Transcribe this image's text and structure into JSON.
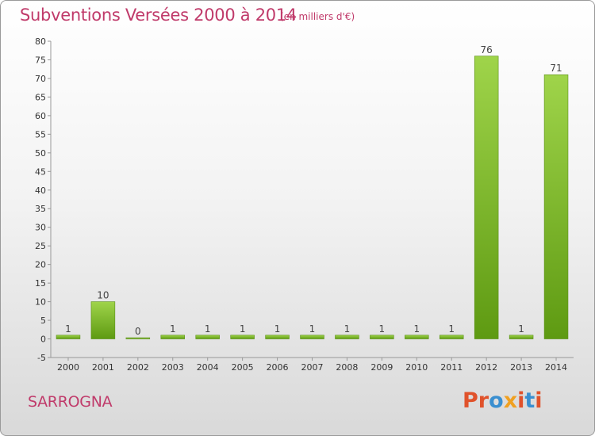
{
  "header": {
    "title": "Subventions Versées 2000 à 2014",
    "subtitle": "(en milliers d'€)"
  },
  "footer": {
    "commune": "SARROGNA",
    "logo_text": "Proxiti"
  },
  "colors": {
    "accent": "#c03a6a",
    "bar_top": "#9fd44a",
    "bar_bottom": "#5e9a12",
    "logo_letters": [
      "#e0522b",
      "#e0522b",
      "#3a8fd0",
      "#f0a020",
      "#e0522b",
      "#3a8fd0",
      "#e0522b"
    ]
  },
  "chart_data": {
    "type": "bar",
    "title": "Subventions Versées 2000 à 2014",
    "categories": [
      "2000",
      "2001",
      "2002",
      "2003",
      "2004",
      "2005",
      "2006",
      "2007",
      "2008",
      "2009",
      "2010",
      "2011",
      "2012",
      "2013",
      "2014"
    ],
    "values": [
      1,
      10,
      0,
      1,
      1,
      1,
      1,
      1,
      1,
      1,
      1,
      1,
      76,
      1,
      71
    ],
    "ylim": [
      -5,
      80
    ],
    "yticks": [
      -5,
      0,
      5,
      10,
      15,
      20,
      25,
      30,
      35,
      40,
      45,
      50,
      55,
      60,
      65,
      70,
      75,
      80
    ],
    "grid": false
  }
}
